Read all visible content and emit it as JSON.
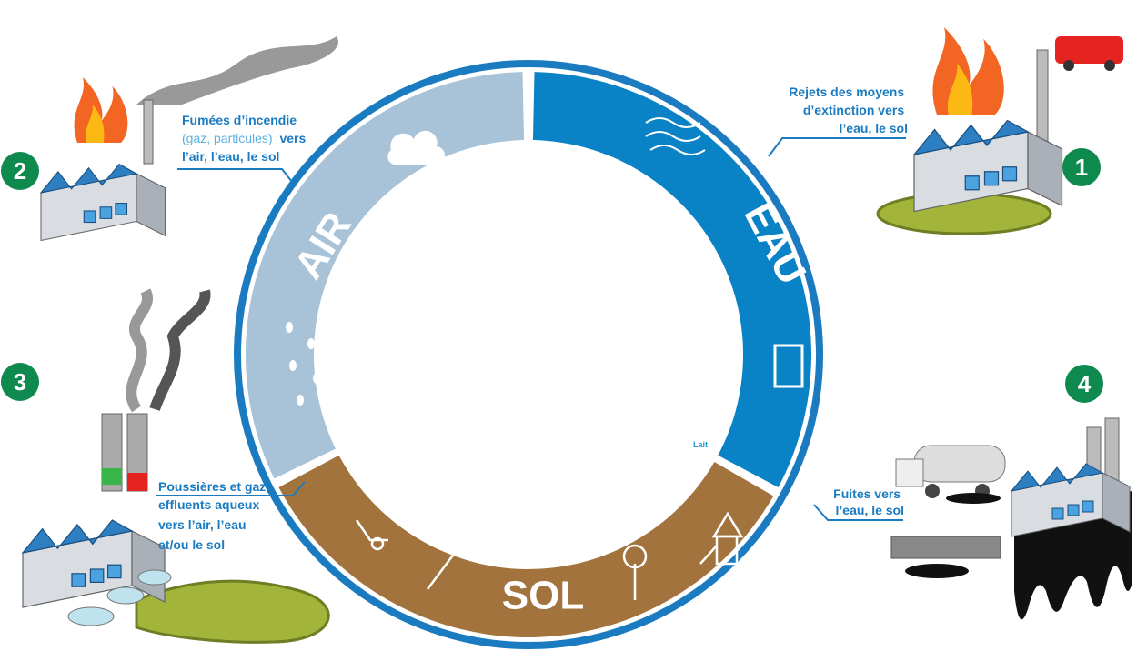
{
  "ring": {
    "air": "AIR",
    "eau": "EAU",
    "sol": "SOL",
    "milk": "Lait"
  },
  "steps": [
    {
      "number": "1",
      "lines": [
        "Rejets des moyens",
        "d’extinction vers",
        "l’eau, le sol"
      ]
    },
    {
      "number": "2",
      "lines": [
        "Fumées d’incendie",
        "(gaz, particules)",
        "vers",
        "l’air, l’eau, le sol"
      ]
    },
    {
      "number": "3",
      "lines": [
        "Poussières et gaz,",
        "effluents aqueux",
        "vers l’air, l’eau",
        "et/ou le sol"
      ]
    },
    {
      "number": "4",
      "lines": [
        "Fuites vers",
        "l’eau, le sol"
      ]
    }
  ]
}
